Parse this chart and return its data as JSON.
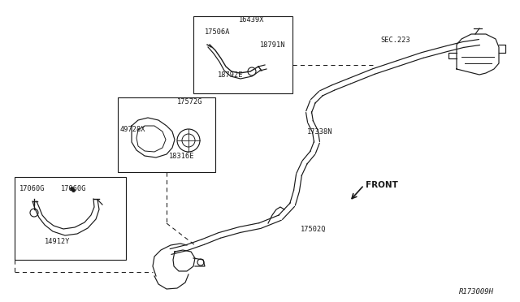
{
  "bg_color": "#ffffff",
  "line_color": "#1a1a1a",
  "diagram_id": "R173009H",
  "labels": {
    "sec223": "SEC.223",
    "16439X": "16439X",
    "17506A": "17506A",
    "18791N": "18791N",
    "18792E": "18792E",
    "17572G": "17572G",
    "49728X": "49728X",
    "18316E": "18316E",
    "17060G_a": "17060G",
    "17060G_b": "17060G",
    "14912Y": "14912Y",
    "17338N": "17338N",
    "17502Q": "17502Q",
    "FRONT": "FRONT"
  }
}
